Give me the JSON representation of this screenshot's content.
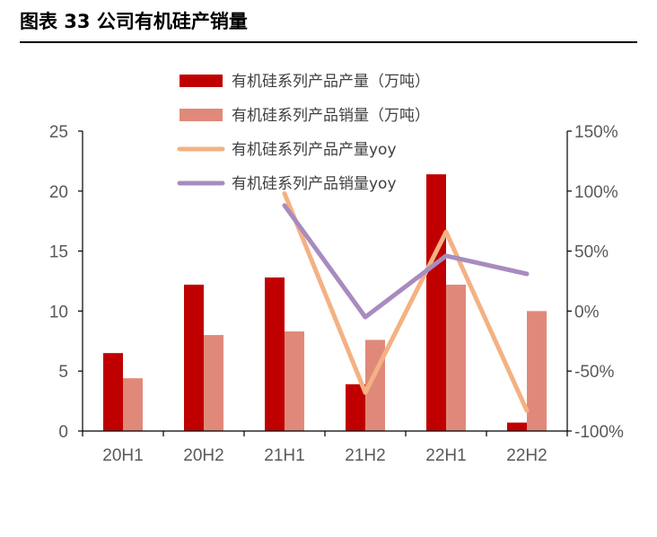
{
  "figure": {
    "title": "图表 33  公司有机硅产销量"
  },
  "colors": {
    "production_bar": "#c00000",
    "sales_bar": "#e0897a",
    "production_yoy_line": "#f4b183",
    "sales_yoy_line": "#a88bbf",
    "axis": "#000000",
    "tick_text": "#595959"
  },
  "chart_data": {
    "type": "bar",
    "categories": [
      "20H1",
      "20H2",
      "21H1",
      "21H2",
      "22H1",
      "22H2"
    ],
    "series": [
      {
        "name": "有机硅系列产品产量（万吨）",
        "type": "bar",
        "axis": "left",
        "values": [
          6.5,
          12.2,
          12.8,
          3.9,
          21.4,
          0.7
        ]
      },
      {
        "name": "有机硅系列产品销量（万吨）",
        "type": "bar",
        "axis": "left",
        "values": [
          4.4,
          8.0,
          8.3,
          7.6,
          12.2,
          10.0
        ]
      },
      {
        "name": "有机硅系列产品产量yoy",
        "type": "line",
        "axis": "right",
        "values": [
          null,
          null,
          98,
          -68,
          66,
          -83
        ]
      },
      {
        "name": "有机硅系列产品销量yoy",
        "type": "line",
        "axis": "right",
        "values": [
          null,
          null,
          88,
          -5,
          46,
          31
        ]
      }
    ],
    "y_left": {
      "lim": [
        0,
        25
      ],
      "ticks": [
        0,
        5,
        10,
        15,
        20,
        25
      ],
      "labels": [
        "0",
        "5",
        "10",
        "15",
        "20",
        "25"
      ]
    },
    "y_right": {
      "lim": [
        -100,
        150
      ],
      "ticks": [
        -100,
        -50,
        0,
        50,
        100,
        150
      ],
      "labels": [
        "-100%",
        "-50%",
        "0%",
        "50%",
        "100%",
        "150%"
      ]
    },
    "grid": false,
    "legend_position": "top-center"
  }
}
